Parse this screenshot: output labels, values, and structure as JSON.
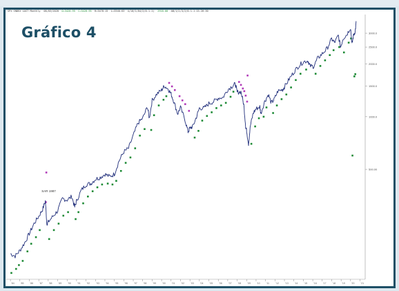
{
  "title": "Gráfico 4",
  "colors": {
    "frame": "#1d4f66",
    "price_line": "#1f2d7a",
    "dots_green": "#1d8a35",
    "dots_magenta": "#b03ab8",
    "background": "#ffffff"
  },
  "chart_data": {
    "type": "line",
    "title": "Gráfico 4",
    "header_text": [
      {
        "text": "SPX INDEX LAST Monthly",
        "color": "#333333"
      },
      {
        "text": "08/03/2020",
        "color": "#333333"
      },
      {
        "text": "O=3420.95",
        "color": "#1d8a35"
      },
      {
        "text": "C=3420.95",
        "color": "#1d8a35"
      },
      {
        "text": "H=3478.15",
        "color": "#333333"
      },
      {
        "text": "L=3340.63",
        "color": "#333333"
      },
      {
        "text": "4/10/1/04/2/0.1.1)",
        "color": "#333333"
      },
      {
        "text": "2918.00",
        "color": "#1d8a35"
      },
      {
        "text": "AB/1/2/3/2/0.1.1.15.20.30",
        "color": "#333333"
      }
    ],
    "y_scale": "log",
    "y_range": [
      120,
      3700
    ],
    "y_ticks": [
      {
        "value": 3000,
        "label": "3000.0"
      },
      {
        "value": 2500,
        "label": "2500.0"
      },
      {
        "value": 2000,
        "label": "2000.0"
      },
      {
        "value": 1500,
        "label": "1500.0"
      },
      {
        "value": 1000,
        "label": "1000.0"
      },
      {
        "value": 500,
        "label": "500.00"
      }
    ],
    "x_ticks": [
      "'84",
      "'85",
      "'86",
      "'87",
      "'88",
      "'89",
      "'90",
      "'91",
      "'92",
      "'93",
      "'94",
      "'95",
      "'96",
      "'97",
      "'98",
      "'99",
      "'00",
      "'01",
      "'02",
      "'03",
      "'04",
      "'05",
      "'06",
      "'07",
      "'08",
      "'09",
      "'10",
      "'11",
      "'12",
      "'13",
      "'14",
      "'15",
      "'16",
      "'17",
      "'18",
      "'19",
      "'20",
      "'21"
    ],
    "annotation": "SAR 1987",
    "series": [
      {
        "name": "",
        "style": "price",
        "points": [
          [
            1984.0,
            165
          ],
          [
            1984.5,
            160
          ],
          [
            1985.0,
            172
          ],
          [
            1985.5,
            190
          ],
          [
            1986.0,
            215
          ],
          [
            1986.5,
            245
          ],
          [
            1987.0,
            270
          ],
          [
            1987.4,
            295
          ],
          [
            1987.7,
            330
          ],
          [
            1987.85,
            245
          ],
          [
            1988.0,
            250
          ],
          [
            1988.5,
            270
          ],
          [
            1989.0,
            290
          ],
          [
            1989.5,
            340
          ],
          [
            1990.0,
            335
          ],
          [
            1990.5,
            350
          ],
          [
            1990.8,
            305
          ],
          [
            1991.0,
            330
          ],
          [
            1991.5,
            380
          ],
          [
            1992.0,
            410
          ],
          [
            1992.5,
            415
          ],
          [
            1993.0,
            440
          ],
          [
            1993.5,
            450
          ],
          [
            1994.0,
            470
          ],
          [
            1994.5,
            455
          ],
          [
            1995.0,
            470
          ],
          [
            1995.5,
            560
          ],
          [
            1996.0,
            630
          ],
          [
            1996.5,
            660
          ],
          [
            1997.0,
            780
          ],
          [
            1997.5,
            920
          ],
          [
            1998.0,
            980
          ],
          [
            1998.5,
            1140
          ],
          [
            1998.7,
            980
          ],
          [
            1999.0,
            1240
          ],
          [
            1999.5,
            1350
          ],
          [
            2000.0,
            1420
          ],
          [
            2000.3,
            1500
          ],
          [
            2000.7,
            1440
          ],
          [
            2001.0,
            1350
          ],
          [
            2001.3,
            1220
          ],
          [
            2001.7,
            1040
          ],
          [
            2002.0,
            1130
          ],
          [
            2002.5,
            950
          ],
          [
            2002.8,
            820
          ],
          [
            2003.0,
            860
          ],
          [
            2003.3,
            880
          ],
          [
            2003.7,
            1000
          ],
          [
            2004.0,
            1120
          ],
          [
            2004.5,
            1120
          ],
          [
            2005.0,
            1190
          ],
          [
            2005.5,
            1220
          ],
          [
            2006.0,
            1280
          ],
          [
            2006.5,
            1290
          ],
          [
            2007.0,
            1430
          ],
          [
            2007.5,
            1500
          ],
          [
            2007.8,
            1540
          ],
          [
            2008.0,
            1380
          ],
          [
            2008.4,
            1390
          ],
          [
            2008.7,
            1170
          ],
          [
            2008.9,
            880
          ],
          [
            2009.0,
            830
          ],
          [
            2009.2,
            700
          ],
          [
            2009.4,
            890
          ],
          [
            2009.7,
            1050
          ],
          [
            2010.0,
            1110
          ],
          [
            2010.4,
            1140
          ],
          [
            2010.5,
            1040
          ],
          [
            2010.9,
            1220
          ],
          [
            2011.3,
            1340
          ],
          [
            2011.6,
            1200
          ],
          [
            2011.9,
            1250
          ],
          [
            2012.3,
            1400
          ],
          [
            2012.8,
            1430
          ],
          [
            2013.0,
            1480
          ],
          [
            2013.5,
            1640
          ],
          [
            2014.0,
            1800
          ],
          [
            2014.5,
            1950
          ],
          [
            2015.0,
            2060
          ],
          [
            2015.5,
            2090
          ],
          [
            2015.7,
            1950
          ],
          [
            2016.1,
            1940
          ],
          [
            2016.5,
            2150
          ],
          [
            2017.0,
            2290
          ],
          [
            2017.5,
            2450
          ],
          [
            2018.0,
            2780
          ],
          [
            2018.3,
            2650
          ],
          [
            2018.7,
            2900
          ],
          [
            2018.95,
            2500
          ],
          [
            2019.2,
            2800
          ],
          [
            2019.6,
            2950
          ],
          [
            2020.0,
            3230
          ],
          [
            2020.15,
            2590
          ],
          [
            2020.3,
            2900
          ],
          [
            2020.5,
            3100
          ],
          [
            2020.6,
            3500
          ]
        ]
      },
      {
        "name": "",
        "style": "dots_green",
        "points": [
          [
            1984.1,
            128
          ],
          [
            1984.6,
            135
          ],
          [
            1984.9,
            142
          ],
          [
            1985.3,
            150
          ],
          [
            1985.8,
            170
          ],
          [
            1986.2,
            188
          ],
          [
            1986.7,
            205
          ],
          [
            1987.1,
            225
          ],
          [
            1988.1,
            200
          ],
          [
            1988.6,
            225
          ],
          [
            1989.1,
            245
          ],
          [
            1989.6,
            272
          ],
          [
            1990.1,
            285
          ],
          [
            1990.9,
            260
          ],
          [
            1991.2,
            285
          ],
          [
            1991.7,
            320
          ],
          [
            1992.2,
            350
          ],
          [
            1992.7,
            375
          ],
          [
            1993.2,
            395
          ],
          [
            1993.7,
            410
          ],
          [
            1994.3,
            415
          ],
          [
            1994.8,
            410
          ],
          [
            1995.2,
            430
          ],
          [
            1995.7,
            490
          ],
          [
            1996.2,
            545
          ],
          [
            1996.7,
            585
          ],
          [
            1997.2,
            660
          ],
          [
            1997.7,
            780
          ],
          [
            1998.2,
            850
          ],
          [
            1998.9,
            840
          ],
          [
            1999.2,
            1020
          ],
          [
            1999.7,
            1160
          ],
          [
            2000.2,
            1250
          ],
          [
            2000.5,
            1310
          ],
          [
            2003.5,
            760
          ],
          [
            2003.9,
            830
          ],
          [
            2004.3,
            950
          ],
          [
            2004.8,
            1010
          ],
          [
            2005.3,
            1060
          ],
          [
            2005.8,
            1120
          ],
          [
            2006.3,
            1160
          ],
          [
            2006.8,
            1200
          ],
          [
            2007.3,
            1300
          ],
          [
            2007.6,
            1390
          ],
          [
            2009.5,
            700
          ],
          [
            2009.9,
            880
          ],
          [
            2010.3,
            980
          ],
          [
            2010.8,
            1000
          ],
          [
            2011.1,
            1130
          ],
          [
            2011.8,
            1050
          ],
          [
            2012.2,
            1160
          ],
          [
            2012.7,
            1260
          ],
          [
            2013.2,
            1340
          ],
          [
            2013.7,
            1470
          ],
          [
            2014.2,
            1620
          ],
          [
            2014.7,
            1760
          ],
          [
            2015.3,
            1860
          ],
          [
            2016.3,
            1760
          ],
          [
            2016.8,
            1950
          ],
          [
            2017.3,
            2100
          ],
          [
            2017.8,
            2250
          ],
          [
            2018.2,
            2400
          ],
          [
            2018.8,
            2500
          ],
          [
            2019.3,
            2330
          ],
          [
            2019.8,
            2650
          ],
          [
            2020.05,
            2800
          ],
          [
            2020.4,
            1700
          ],
          [
            2020.5,
            1750
          ],
          [
            2020.2,
            600
          ]
        ]
      },
      {
        "name": "",
        "style": "dots_magenta",
        "points": [
          [
            1987.8,
            480
          ],
          [
            1987.75,
            325
          ],
          [
            2000.8,
            1560
          ],
          [
            2001.1,
            1490
          ],
          [
            2001.4,
            1420
          ],
          [
            2001.9,
            1310
          ],
          [
            2002.2,
            1240
          ],
          [
            2002.5,
            1180
          ],
          [
            2002.9,
            1080
          ],
          [
            2008.2,
            1580
          ],
          [
            2008.4,
            1520
          ],
          [
            2008.6,
            1450
          ],
          [
            2008.75,
            1400
          ],
          [
            2008.9,
            1320
          ],
          [
            2009.05,
            1220
          ],
          [
            2009.1,
            1720
          ]
        ]
      }
    ]
  }
}
